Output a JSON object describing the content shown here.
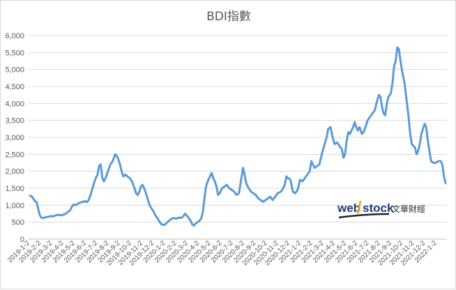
{
  "chart_data": {
    "type": "line",
    "title": "BDI指數",
    "xlabel": "",
    "ylabel": "",
    "ylim": [
      0,
      6000
    ],
    "grid": true,
    "legend": "none",
    "y_ticks": [
      "0",
      "500",
      "1,000",
      "1,500",
      "2,000",
      "2,500",
      "3,000",
      "3,500",
      "4,000",
      "4,500",
      "5,000",
      "5,500",
      "6,000"
    ],
    "x_ticks": [
      "2019-1-2",
      "2019-2-2",
      "2019-3-2",
      "2019-4-2",
      "2019-5-2",
      "2019-6-2",
      "2019-7-2",
      "2019-8-2",
      "2019-9-2",
      "2019-10-2",
      "2019-11-2",
      "2019-12-2",
      "2020-1-2",
      "2020-2-2",
      "2020-3-2",
      "2020-4-2",
      "2020-5-2",
      "2020-6-2",
      "2020-7-2",
      "2020-8-2",
      "2020-9-2",
      "2020-10-2",
      "2020-11-2",
      "2020-12-2",
      "2021-1-2",
      "2021-2-2",
      "2021-3-2",
      "2021-4-2",
      "2021-5-2",
      "2021-6-2",
      "2021-7-2",
      "2021-8-2",
      "2021-9-2",
      "2021-10-2",
      "2021-11-2",
      "2021-12-2",
      "2022-1-2"
    ],
    "x_range_months": [
      0,
      37
    ],
    "series": [
      {
        "color": "#5b9bd5",
        "points": [
          [
            0.0,
            1280
          ],
          [
            0.2,
            1260
          ],
          [
            0.4,
            1200
          ],
          [
            0.6,
            1120
          ],
          [
            0.8,
            1100
          ],
          [
            1.0,
            920
          ],
          [
            1.2,
            720
          ],
          [
            1.4,
            640
          ],
          [
            1.6,
            620
          ],
          [
            1.8,
            630
          ],
          [
            2.0,
            650
          ],
          [
            2.3,
            660
          ],
          [
            2.6,
            680
          ],
          [
            2.9,
            670
          ],
          [
            3.2,
            700
          ],
          [
            3.5,
            720
          ],
          [
            3.8,
            700
          ],
          [
            4.1,
            720
          ],
          [
            4.4,
            740
          ],
          [
            4.7,
            800
          ],
          [
            5.0,
            850
          ],
          [
            5.2,
            950
          ],
          [
            5.4,
            1020
          ],
          [
            5.7,
            1000
          ],
          [
            6.0,
            1050
          ],
          [
            6.3,
            1080
          ],
          [
            6.6,
            1100
          ],
          [
            6.9,
            1120
          ],
          [
            7.1,
            1090
          ],
          [
            7.3,
            1150
          ],
          [
            7.6,
            1350
          ],
          [
            7.9,
            1600
          ],
          [
            8.1,
            1750
          ],
          [
            8.4,
            1900
          ],
          [
            8.6,
            2150
          ],
          [
            8.8,
            2200
          ],
          [
            9.0,
            1800
          ],
          [
            9.2,
            1700
          ],
          [
            9.4,
            1800
          ],
          [
            9.7,
            2000
          ],
          [
            10.0,
            2200
          ],
          [
            10.3,
            2300
          ],
          [
            10.6,
            2500
          ],
          [
            10.8,
            2450
          ],
          [
            11.0,
            2350
          ],
          [
            11.2,
            2200
          ],
          [
            11.4,
            2000
          ],
          [
            11.6,
            1850
          ],
          [
            11.9,
            1900
          ],
          [
            12.1,
            1850
          ],
          [
            12.4,
            1800
          ],
          [
            12.7,
            1700
          ],
          [
            13.0,
            1500
          ],
          [
            13.2,
            1350
          ],
          [
            13.4,
            1300
          ],
          [
            13.6,
            1400
          ],
          [
            13.8,
            1550
          ],
          [
            14.0,
            1600
          ],
          [
            14.2,
            1500
          ],
          [
            14.5,
            1300
          ],
          [
            14.8,
            1050
          ],
          [
            15.0,
            950
          ],
          [
            15.2,
            880
          ],
          [
            15.4,
            800
          ],
          [
            15.6,
            700
          ],
          [
            15.9,
            600
          ],
          [
            16.1,
            520
          ],
          [
            16.3,
            450
          ],
          [
            16.5,
            420
          ],
          [
            16.8,
            430
          ],
          [
            17.0,
            480
          ],
          [
            17.3,
            540
          ],
          [
            17.6,
            600
          ],
          [
            17.9,
            620
          ],
          [
            18.2,
            600
          ],
          [
            18.5,
            640
          ],
          [
            18.8,
            620
          ],
          [
            19.1,
            680
          ],
          [
            19.3,
            750
          ],
          [
            19.5,
            700
          ],
          [
            19.8,
            600
          ],
          [
            20.0,
            540
          ],
          [
            20.2,
            420
          ],
          [
            20.4,
            400
          ],
          [
            20.7,
            480
          ],
          [
            21.0,
            520
          ],
          [
            21.3,
            600
          ],
          [
            21.5,
            800
          ],
          [
            21.7,
            1200
          ],
          [
            21.9,
            1550
          ],
          [
            22.1,
            1700
          ],
          [
            22.4,
            1850
          ],
          [
            22.6,
            1950
          ],
          [
            22.8,
            1800
          ],
          [
            23.0,
            1700
          ],
          [
            23.2,
            1550
          ],
          [
            23.4,
            1300
          ],
          [
            23.6,
            1350
          ],
          [
            23.9,
            1500
          ],
          [
            24.2,
            1550
          ],
          [
            24.5,
            1600
          ],
          [
            24.8,
            1500
          ],
          [
            25.1,
            1450
          ],
          [
            25.4,
            1400
          ],
          [
            25.7,
            1300
          ],
          [
            26.0,
            1350
          ],
          [
            26.3,
            1800
          ],
          [
            26.5,
            2100
          ],
          [
            26.7,
            1900
          ],
          [
            26.9,
            1650
          ],
          [
            27.2,
            1500
          ],
          [
            27.5,
            1400
          ],
          [
            27.8,
            1350
          ],
          [
            28.1,
            1300
          ],
          [
            28.4,
            1200
          ],
          [
            28.7,
            1150
          ],
          [
            29.0,
            1100
          ],
          [
            29.3,
            1150
          ],
          [
            29.6,
            1200
          ],
          [
            29.9,
            1250
          ],
          [
            30.2,
            1150
          ],
          [
            30.5,
            1250
          ],
          [
            30.8,
            1350
          ],
          [
            31.1,
            1380
          ],
          [
            31.4,
            1450
          ],
          [
            31.7,
            1600
          ],
          [
            31.9,
            1850
          ],
          [
            32.1,
            1800
          ],
          [
            32.4,
            1750
          ],
          [
            32.7,
            1400
          ],
          [
            33.0,
            1350
          ],
          [
            33.3,
            1450
          ],
          [
            33.6,
            1750
          ],
          [
            33.9,
            1700
          ],
          [
            34.2,
            1800
          ],
          [
            34.5,
            1900
          ],
          [
            34.8,
            2000
          ],
          [
            35.0,
            2300
          ],
          [
            35.2,
            2200
          ],
          [
            35.4,
            2100
          ],
          [
            35.7,
            2150
          ],
          [
            36.0,
            2200
          ],
          [
            36.3,
            2500
          ],
          [
            36.6,
            2750
          ],
          [
            36.9,
            3000
          ],
          [
            37.1,
            3250
          ],
          [
            37.4,
            3300
          ],
          [
            37.6,
            3050
          ],
          [
            37.9,
            2800
          ],
          [
            38.2,
            2850
          ],
          [
            38.5,
            2750
          ],
          [
            38.8,
            2650
          ],
          [
            39.0,
            2400
          ],
          [
            39.2,
            2500
          ],
          [
            39.4,
            2900
          ],
          [
            39.6,
            3150
          ],
          [
            39.8,
            3100
          ],
          [
            40.0,
            3200
          ],
          [
            40.2,
            3300
          ],
          [
            40.4,
            3450
          ],
          [
            40.6,
            3300
          ],
          [
            40.8,
            3200
          ],
          [
            41.0,
            3300
          ],
          [
            41.3,
            3100
          ],
          [
            41.5,
            3150
          ],
          [
            41.8,
            3350
          ],
          [
            42.0,
            3500
          ],
          [
            42.3,
            3600
          ],
          [
            42.6,
            3700
          ],
          [
            42.9,
            3800
          ],
          [
            43.1,
            4000
          ],
          [
            43.4,
            4250
          ],
          [
            43.6,
            4200
          ],
          [
            43.8,
            3900
          ],
          [
            44.0,
            3700
          ],
          [
            44.2,
            3650
          ],
          [
            44.4,
            4000
          ],
          [
            44.6,
            4200
          ],
          [
            44.9,
            4300
          ],
          [
            45.1,
            4600
          ],
          [
            45.3,
            5100
          ],
          [
            45.5,
            5250
          ],
          [
            45.7,
            5650
          ],
          [
            45.9,
            5600
          ],
          [
            46.1,
            5250
          ],
          [
            46.3,
            4950
          ],
          [
            46.6,
            4600
          ],
          [
            46.9,
            4000
          ],
          [
            47.1,
            3600
          ],
          [
            47.3,
            3100
          ],
          [
            47.5,
            2800
          ],
          [
            47.7,
            2750
          ],
          [
            47.9,
            2700
          ],
          [
            48.1,
            2500
          ],
          [
            48.3,
            2600
          ],
          [
            48.5,
            2800
          ],
          [
            48.7,
            3100
          ],
          [
            48.9,
            3250
          ],
          [
            49.1,
            3400
          ],
          [
            49.3,
            3300
          ],
          [
            49.5,
            2900
          ],
          [
            49.7,
            2600
          ],
          [
            49.9,
            2300
          ],
          [
            50.2,
            2250
          ],
          [
            50.5,
            2250
          ],
          [
            50.8,
            2300
          ],
          [
            51.1,
            2300
          ],
          [
            51.3,
            2200
          ],
          [
            51.5,
            1850
          ],
          [
            51.7,
            1650
          ]
        ]
      }
    ],
    "watermark": {
      "logo_text_a": "web",
      "logo_text_b": "stock",
      "logo_cn": "文華財經"
    }
  }
}
